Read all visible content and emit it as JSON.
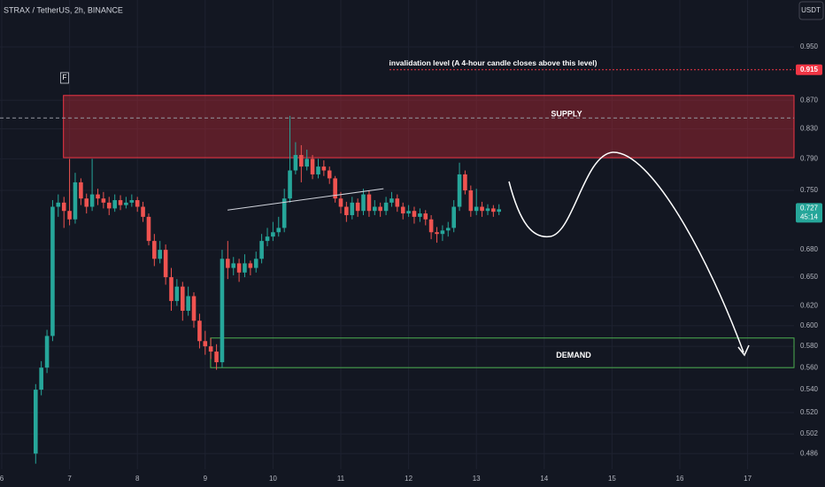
{
  "chart_data": {
    "type": "candlestick",
    "title": "STRAX / TetherUS, 2h, BINANCE",
    "currency": "USDT",
    "log_scale": true,
    "grid": true,
    "up_color": "#26a69a",
    "down_color": "#ef5350",
    "xlim": [
      5.974,
      17.684
    ],
    "ylim": [
      0.4736,
      1.0264
    ],
    "xticks": [
      6,
      7,
      8,
      9,
      10,
      11,
      12,
      13,
      14,
      15,
      16,
      17
    ],
    "yticks": [
      {
        "value": 0.95,
        "label": "0.950"
      },
      {
        "value": 0.87,
        "label": "0.870"
      },
      {
        "value": 0.83,
        "label": "0.830"
      },
      {
        "value": 0.79,
        "label": "0.790"
      },
      {
        "value": 0.75,
        "label": "0.750"
      },
      {
        "value": 0.68,
        "label": "0.680"
      },
      {
        "value": 0.65,
        "label": "0.650"
      },
      {
        "value": 0.62,
        "label": "0.620"
      },
      {
        "value": 0.6,
        "label": "0.600"
      },
      {
        "value": 0.58,
        "label": "0.580"
      },
      {
        "value": 0.56,
        "label": "0.560"
      },
      {
        "value": 0.54,
        "label": "0.540"
      },
      {
        "value": 0.52,
        "label": "0.520"
      },
      0.502,
      0.486
    ],
    "x": [
      6.5,
      6.583,
      6.667,
      6.75,
      6.833,
      6.917,
      7,
      7.083,
      7.167,
      7.25,
      7.333,
      7.417,
      7.5,
      7.583,
      7.667,
      7.75,
      7.833,
      7.917,
      8,
      8.083,
      8.167,
      8.25,
      8.333,
      8.417,
      8.5,
      8.583,
      8.667,
      8.75,
      8.833,
      8.917,
      9,
      9.083,
      9.167,
      9.25,
      9.333,
      9.417,
      9.5,
      9.583,
      9.667,
      9.75,
      9.833,
      9.917,
      10,
      10.083,
      10.167,
      10.25,
      10.333,
      10.417,
      10.5,
      10.583,
      10.667,
      10.75,
      10.833,
      10.917,
      11,
      11.083,
      11.167,
      11.25,
      11.333,
      11.417,
      11.5,
      11.583,
      11.667,
      11.75,
      11.833,
      11.917,
      12,
      12.083,
      12.167,
      12.25,
      12.333,
      12.417,
      12.5,
      12.583,
      12.667,
      12.75,
      12.833,
      12.917,
      13,
      13.083,
      13.167,
      13.25,
      13.333
    ],
    "open": [
      0.486,
      0.54,
      0.56,
      0.59,
      0.73,
      0.735,
      0.725,
      0.715,
      0.76,
      0.74,
      0.73,
      0.745,
      0.74,
      0.735,
      0.728,
      0.738,
      0.732,
      0.735,
      0.738,
      0.73,
      0.718,
      0.69,
      0.67,
      0.68,
      0.65,
      0.625,
      0.64,
      0.615,
      0.63,
      0.605,
      0.585,
      0.58,
      0.575,
      0.565,
      0.67,
      0.66,
      0.665,
      0.655,
      0.665,
      0.66,
      0.67,
      0.69,
      0.695,
      0.7,
      0.705,
      0.74,
      0.775,
      0.795,
      0.78,
      0.79,
      0.77,
      0.78,
      0.775,
      0.765,
      0.74,
      0.73,
      0.72,
      0.735,
      0.725,
      0.745,
      0.725,
      0.73,
      0.725,
      0.735,
      0.74,
      0.73,
      0.722,
      0.725,
      0.718,
      0.722,
      0.715,
      0.7,
      0.698,
      0.702,
      0.705,
      0.73,
      0.77,
      0.75,
      0.725,
      0.73,
      0.725,
      0.728,
      0.724
    ],
    "high": [
      0.545,
      0.566,
      0.596,
      0.738,
      0.745,
      0.742,
      0.79,
      0.772,
      0.765,
      0.746,
      0.79,
      0.752,
      0.748,
      0.742,
      0.745,
      0.744,
      0.742,
      0.745,
      0.742,
      0.736,
      0.722,
      0.698,
      0.69,
      0.686,
      0.66,
      0.648,
      0.645,
      0.64,
      0.634,
      0.612,
      0.595,
      0.588,
      0.582,
      0.68,
      0.69,
      0.672,
      0.67,
      0.675,
      0.668,
      0.678,
      0.698,
      0.705,
      0.712,
      0.718,
      0.752,
      0.848,
      0.812,
      0.808,
      0.802,
      0.795,
      0.79,
      0.788,
      0.78,
      0.768,
      0.748,
      0.736,
      0.742,
      0.74,
      0.752,
      0.75,
      0.738,
      0.735,
      0.742,
      0.748,
      0.745,
      0.735,
      0.732,
      0.73,
      0.728,
      0.726,
      0.72,
      0.706,
      0.708,
      0.712,
      0.738,
      0.785,
      0.775,
      0.756,
      0.752,
      0.736,
      0.733,
      0.732,
      0.733
    ],
    "low": [
      0.478,
      0.535,
      0.555,
      0.585,
      0.718,
      0.705,
      0.708,
      0.71,
      0.732,
      0.722,
      0.725,
      0.732,
      0.728,
      0.72,
      0.724,
      0.726,
      0.728,
      0.73,
      0.724,
      0.712,
      0.685,
      0.662,
      0.665,
      0.642,
      0.615,
      0.62,
      0.605,
      0.61,
      0.598,
      0.578,
      0.572,
      0.568,
      0.558,
      0.56,
      0.648,
      0.652,
      0.645,
      0.65,
      0.652,
      0.655,
      0.665,
      0.684,
      0.69,
      0.695,
      0.7,
      0.735,
      0.77,
      0.76,
      0.775,
      0.764,
      0.765,
      0.768,
      0.758,
      0.735,
      0.722,
      0.712,
      0.715,
      0.718,
      0.72,
      0.718,
      0.72,
      0.718,
      0.72,
      0.73,
      0.724,
      0.715,
      0.718,
      0.71,
      0.712,
      0.708,
      0.692,
      0.688,
      0.69,
      0.695,
      0.7,
      0.725,
      0.745,
      0.718,
      0.72,
      0.718,
      0.72,
      0.718,
      0.72
    ],
    "close": [
      0.54,
      0.56,
      0.59,
      0.73,
      0.735,
      0.725,
      0.715,
      0.76,
      0.74,
      0.73,
      0.745,
      0.74,
      0.735,
      0.728,
      0.738,
      0.732,
      0.735,
      0.738,
      0.73,
      0.718,
      0.69,
      0.67,
      0.68,
      0.65,
      0.625,
      0.64,
      0.615,
      0.63,
      0.605,
      0.585,
      0.58,
      0.575,
      0.565,
      0.67,
      0.66,
      0.665,
      0.655,
      0.665,
      0.66,
      0.67,
      0.69,
      0.695,
      0.7,
      0.705,
      0.74,
      0.775,
      0.795,
      0.78,
      0.79,
      0.77,
      0.78,
      0.775,
      0.765,
      0.74,
      0.73,
      0.72,
      0.735,
      0.725,
      0.745,
      0.725,
      0.73,
      0.725,
      0.735,
      0.74,
      0.73,
      0.722,
      0.725,
      0.718,
      0.722,
      0.715,
      0.7,
      0.698,
      0.702,
      0.705,
      0.73,
      0.77,
      0.75,
      0.725,
      0.73,
      0.725,
      0.728,
      0.724,
      0.727
    ],
    "current_price": {
      "value": 0.727,
      "countdown": "45:14"
    },
    "invalidation": {
      "value": 0.915,
      "text": "invalidation level (A 4-hour candle closes above this level)"
    },
    "reference_line": 0.845,
    "supply": {
      "label": "SUPPLY",
      "top": 0.877,
      "bottom": 0.7915,
      "start": 6.91
    },
    "demand": {
      "label": "DEMAND",
      "top": 0.588,
      "bottom": 0.56,
      "start": 9.08
    },
    "trendline": {
      "x": [
        9.33,
        11.63
      ],
      "y": [
        0.726,
        0.752
      ]
    },
    "flag": {
      "label": "F",
      "x": 6.92
    }
  }
}
